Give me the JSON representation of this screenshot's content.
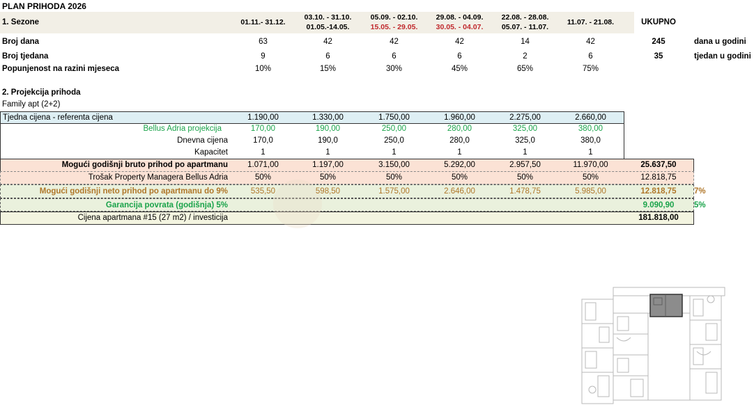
{
  "title": "PLAN PRIHODA 2026",
  "section1": {
    "label": "1. Sezone",
    "total_header": "UKUPNO",
    "periods": [
      {
        "line1": "01.11.- 31.12.",
        "line2": ""
      },
      {
        "line1": "03.10. - 31.10.",
        "line2": "01.05.-14.05."
      },
      {
        "line1": "05.09. - 02.10.",
        "line2": "15.05. - 29.05."
      },
      {
        "line1": "29.08. - 04.09.",
        "line2": "30.05. - 04.07."
      },
      {
        "line1": "22.08. - 28.08.",
        "line2": "05.07. - 11.07."
      },
      {
        "line1": "11.07. - 21.08.",
        "line2": ""
      }
    ],
    "rows": [
      {
        "label": "Broj dana",
        "values": [
          "63",
          "42",
          "42",
          "42",
          "14",
          "42"
        ],
        "total": "245",
        "unit": "dana u godini"
      },
      {
        "label": "Broj tjedana",
        "values": [
          "9",
          "6",
          "6",
          "6",
          "2",
          "6"
        ],
        "total": "35",
        "unit": "tjedan u godini"
      },
      {
        "label": "Popunjenost na razini mjeseca",
        "values": [
          "10%",
          "15%",
          "30%",
          "45%",
          "65%",
          "75%"
        ],
        "total": "",
        "unit": ""
      }
    ]
  },
  "section2": {
    "label": "2. Projekcija prihoda",
    "sublabel": "Family apt  (2+2)",
    "rows": [
      {
        "label": "Tjedna cijena - referenta cijena",
        "values": [
          "1.190,00",
          "1.330,00",
          "1.750,00",
          "1.960,00",
          "2.275,00",
          "2.660,00"
        ],
        "total": "",
        "extra": ""
      },
      {
        "label": "Bellus Adria projekcija",
        "values": [
          "170,00",
          "190,00",
          "250,00",
          "280,00",
          "325,00",
          "380,00"
        ],
        "total": "",
        "extra": ""
      },
      {
        "label": "Dnevna cijena",
        "values": [
          "170,0",
          "190,0",
          "250,0",
          "280,0",
          "325,0",
          "380,0"
        ],
        "total": "",
        "extra": ""
      },
      {
        "label": "Kapacitet",
        "values": [
          "1",
          "1",
          "1",
          "1",
          "1",
          "1"
        ],
        "total": "",
        "extra": ""
      },
      {
        "label": "Mogući godišnji bruto prihod po apartmanu",
        "values": [
          "1.071,00",
          "1.197,00",
          "3.150,00",
          "5.292,00",
          "2.957,50",
          "11.970,00"
        ],
        "total": "25.637,50",
        "extra": ""
      },
      {
        "label": "Trošak Property Managera Bellus Adria",
        "values": [
          "50%",
          "50%",
          "50%",
          "50%",
          "50%",
          "50%"
        ],
        "total": "12.818,75",
        "extra": ""
      },
      {
        "label": "Mogući godišnji neto prihod po apartmanu do 9%",
        "values": [
          "535,50",
          "598,50",
          "1.575,00",
          "2.646,00",
          "1.478,75",
          "5.985,00"
        ],
        "total": "12.818,75",
        "extra": "7%"
      },
      {
        "label": "Garancija povrata (godišnja) 5%",
        "values": [
          "",
          "",
          "",
          "",
          "",
          ""
        ],
        "total": "9.090,90",
        "extra": "5%"
      },
      {
        "label": "Cijena apartmana #15 (27 m2) /  investicija",
        "values": [
          "",
          "",
          "",
          "",
          "",
          ""
        ],
        "total": "181.818,00",
        "extra": ""
      }
    ]
  },
  "colors": {
    "header_band": "#f2efe6",
    "light_blue": "#deeff4",
    "salmon": "#fbe2d5",
    "pale_green": "#eaf1dd",
    "pale_yellow": "#f3f4e0",
    "green_text": "#1aa34a",
    "red_text": "#c0282c",
    "gold_text": "#b0772a"
  }
}
